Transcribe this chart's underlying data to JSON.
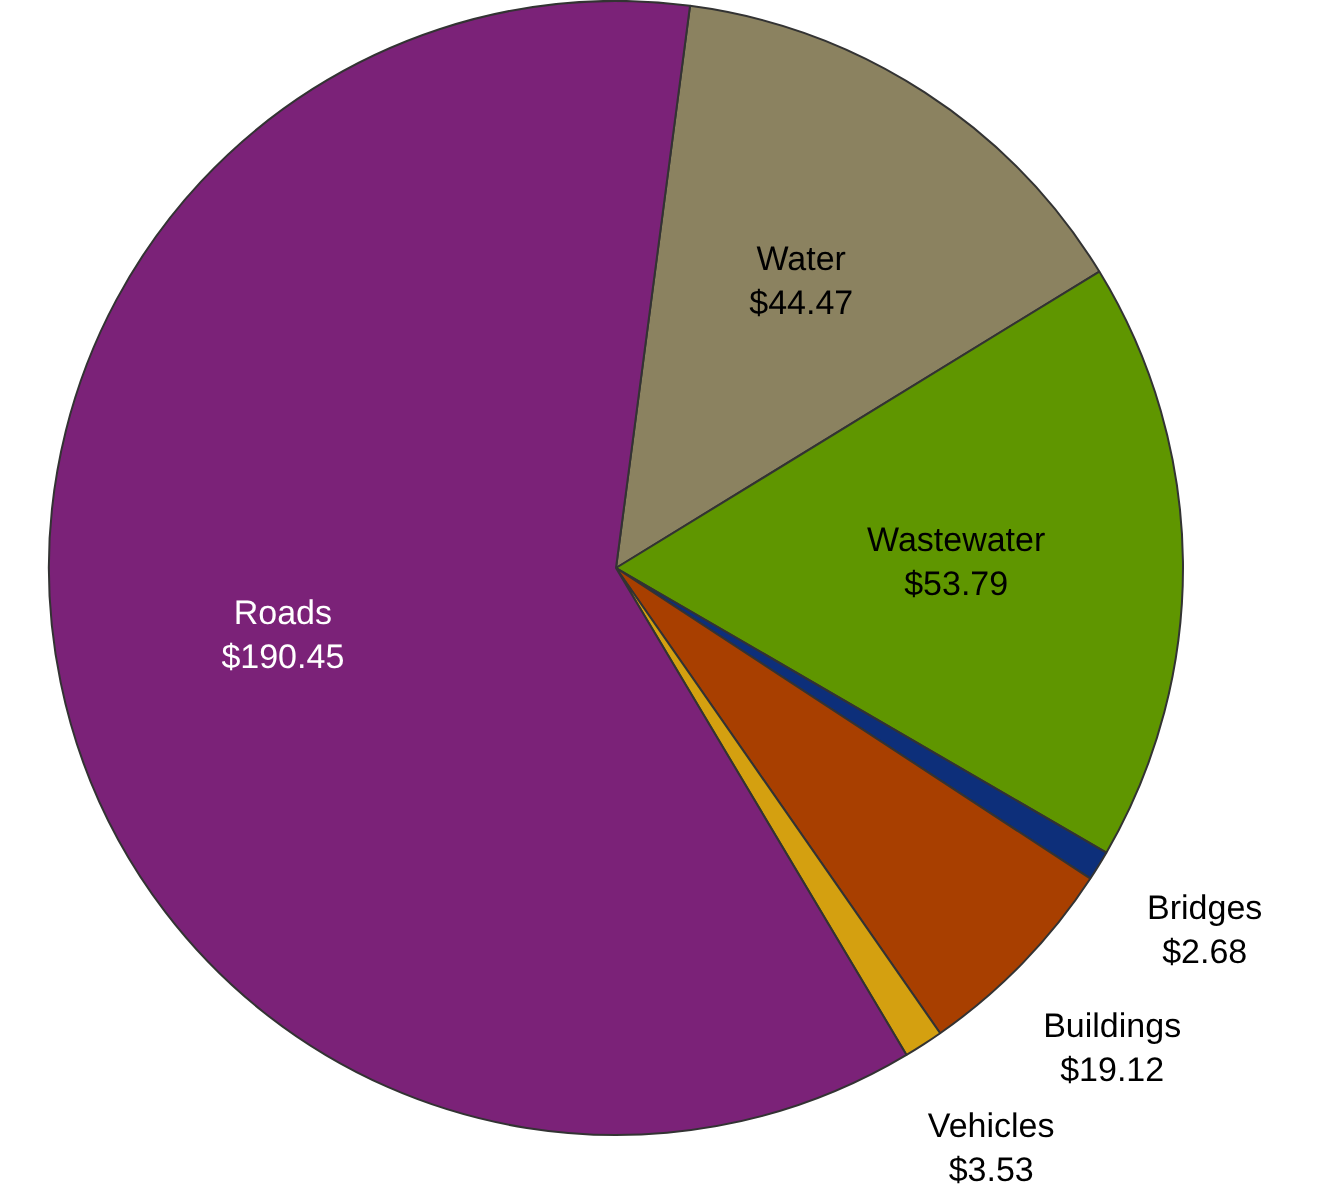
{
  "chart_data": {
    "type": "pie",
    "categories": [
      "Water",
      "Wastewater",
      "Bridges",
      "Buildings",
      "Vehicles",
      "Roads"
    ],
    "values": [
      44.47,
      53.79,
      2.68,
      19.12,
      3.53,
      190.45
    ],
    "colors": [
      "#8b8260",
      "#5f9600",
      "#0d2f7a",
      "#a83f00",
      "#d4a010",
      "#7b2278"
    ],
    "value_labels": [
      "$44.47",
      "$53.79",
      "$2.68",
      "$19.12",
      "$3.53",
      "$190.45"
    ],
    "legend": false
  }
}
